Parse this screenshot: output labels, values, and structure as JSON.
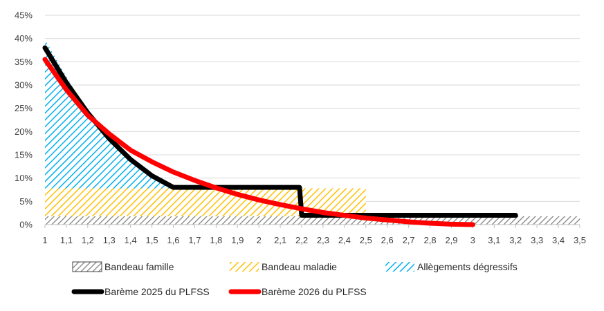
{
  "chart_data": {
    "type": "area",
    "x_ticks": [
      "1",
      "1,1",
      "1,2",
      "1,3",
      "1,4",
      "1,5",
      "1,6",
      "1,7",
      "1,8",
      "1,9",
      "2",
      "2,1",
      "2,2",
      "2,3",
      "2,4",
      "2,5",
      "2,6",
      "2,7",
      "2,8",
      "2,9",
      "3",
      "3,1",
      "3,2",
      "3,3",
      "3,4",
      "3,5"
    ],
    "y_ticks": [
      "0%",
      "5%",
      "10%",
      "15%",
      "20%",
      "25%",
      "30%",
      "35%",
      "40%",
      "45%"
    ],
    "xlim": [
      1,
      3.5
    ],
    "ylim": [
      0,
      45
    ],
    "grid": "horizontal",
    "legend_position": "bottom",
    "series": [
      {
        "name": "Bandeau famille",
        "kind": "hatched-area",
        "color": "#7f7f7f",
        "x": [
          1,
          3.5
        ],
        "y": [
          1.8,
          1.8
        ]
      },
      {
        "name": "Bandeau maladie",
        "kind": "hatched-area",
        "color": "#ffc000",
        "x": [
          1,
          2.5
        ],
        "y": [
          6,
          6
        ]
      },
      {
        "name": "Allègements dégressifs",
        "kind": "hatched-area",
        "color": "#00b0f0",
        "x": [
          1,
          1.1,
          1.2,
          1.3,
          1.4,
          1.5,
          1.6
        ],
        "y": [
          32,
          24,
          16.5,
          10.5,
          6.5,
          2.5,
          0
        ]
      },
      {
        "name": "Barème 2025 du PLFSS",
        "kind": "line",
        "color": "#000000",
        "x": [
          1,
          1.1,
          1.2,
          1.3,
          1.4,
          1.5,
          1.6,
          1.8,
          2.0,
          2.19,
          2.2,
          2.5,
          3.0,
          3.2
        ],
        "y": [
          38,
          30.5,
          24,
          18.5,
          14,
          10.5,
          8,
          8,
          8,
          8,
          2,
          2,
          2,
          2
        ]
      },
      {
        "name": "Barème 2026 du PLFSS",
        "kind": "line",
        "color": "#ff0000",
        "x": [
          1,
          1.1,
          1.2,
          1.3,
          1.4,
          1.5,
          1.6,
          1.7,
          1.8,
          1.9,
          2.0,
          2.1,
          2.2,
          2.3,
          2.4,
          2.5,
          2.6,
          2.7,
          2.8,
          2.9,
          3.0
        ],
        "y": [
          35.5,
          29,
          23.5,
          19.5,
          16,
          13.5,
          11.3,
          9.5,
          7.9,
          6.5,
          5.3,
          4.3,
          3.4,
          2.6,
          2,
          1.4,
          1,
          0.6,
          0.3,
          0.1,
          0
        ]
      }
    ]
  }
}
